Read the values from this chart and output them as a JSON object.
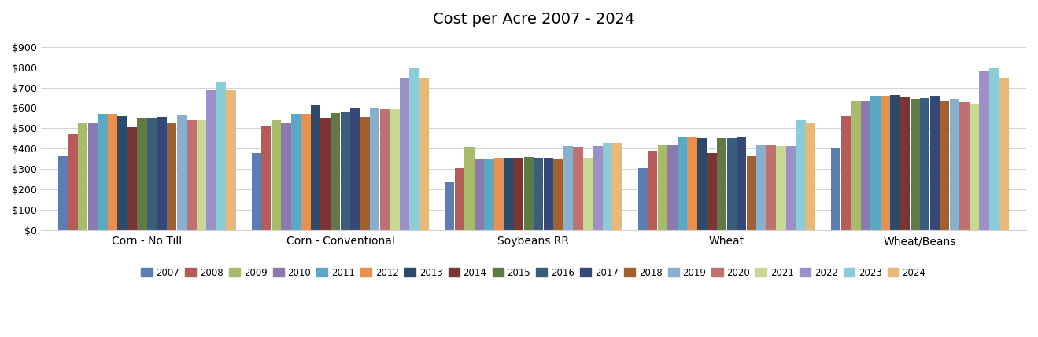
{
  "title": "Cost per Acre 2007 - 2024",
  "categories": [
    "Corn - No Till",
    "Corn - Conventional",
    "Soybeans RR",
    "Wheat",
    "Wheat/Beans"
  ],
  "years": [
    2007,
    2008,
    2009,
    2010,
    2011,
    2012,
    2013,
    2014,
    2015,
    2016,
    2017,
    2018,
    2019,
    2020,
    2021,
    2022,
    2023,
    2024
  ],
  "year_colors": {
    "2007": "#5B7DB1",
    "2008": "#B55B5A",
    "2009": "#A8BB6D",
    "2010": "#8B79B0",
    "2011": "#5BA8C4",
    "2012": "#E89050",
    "2013": "#2E4A6B",
    "2014": "#7A3535",
    "2015": "#607A45",
    "2016": "#3A5E7A",
    "2017": "#354878",
    "2018": "#A06030",
    "2019": "#8AAFCC",
    "2020": "#C07070",
    "2021": "#C8D890",
    "2022": "#9B90C8",
    "2023": "#8ACCD8",
    "2024": "#E8B87A"
  },
  "values": {
    "Corn - No Till": [
      365,
      470,
      525,
      525,
      570,
      570,
      560,
      505,
      550,
      550,
      555,
      530,
      565,
      540,
      540,
      685,
      730,
      690
    ],
    "Corn - Conventional": [
      380,
      515,
      540,
      530,
      570,
      570,
      615,
      550,
      575,
      580,
      600,
      555,
      600,
      595,
      595,
      750,
      800,
      750
    ],
    "Soybeans RR": [
      235,
      305,
      410,
      350,
      350,
      355,
      355,
      355,
      360,
      355,
      355,
      350,
      415,
      410,
      355,
      415,
      430,
      430
    ],
    "Wheat": [
      305,
      390,
      420,
      420,
      455,
      455,
      450,
      380,
      450,
      450,
      460,
      365,
      420,
      420,
      415,
      415,
      540,
      530
    ],
    "Wheat/Beans": [
      400,
      560,
      635,
      635,
      660,
      660,
      665,
      655,
      645,
      650,
      660,
      635,
      645,
      630,
      620,
      780,
      800,
      750
    ]
  },
  "ylim": [
    0,
    950
  ],
  "yticks": [
    0,
    100,
    200,
    300,
    400,
    500,
    600,
    700,
    800,
    900
  ],
  "ytick_labels": [
    "$0",
    "$100",
    "$200",
    "$300",
    "$400",
    "$500",
    "$600",
    "$700",
    "$800",
    "$900"
  ],
  "background_color": "#FFFFFF"
}
